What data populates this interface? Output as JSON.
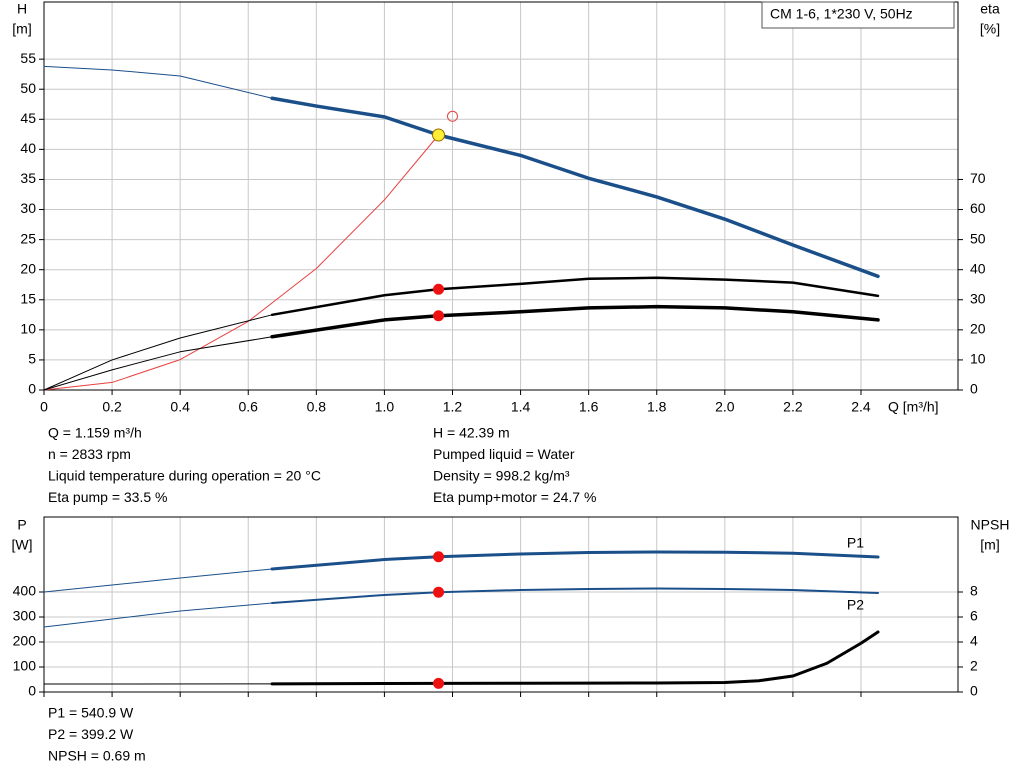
{
  "chart_data": [
    {
      "type": "line",
      "legend_text": "CM 1-6, 1*230 V, 50Hz",
      "ylabel": [
        "H",
        "[m]"
      ],
      "y2label": [
        "eta",
        "[%]"
      ],
      "xlabel": "Q [m³/h]",
      "xlim": [
        0,
        2.685
      ],
      "xticks": [
        0,
        0.2,
        0.4,
        0.6,
        0.8,
        {
          "value": 1,
          "label": "1.0"
        },
        1.2,
        1.4,
        1.6,
        1.8,
        {
          "value": 2,
          "label": "2.0"
        },
        2.2,
        2.4
      ],
      "xtick_labels": true,
      "ylim": [
        0,
        64.5
      ],
      "yticks": [
        0,
        5,
        10,
        15,
        20,
        25,
        30,
        35,
        40,
        45,
        50,
        55
      ],
      "y2lim": [
        0,
        129
      ],
      "y2ticks": [
        0,
        10,
        20,
        30,
        40,
        50,
        60,
        70
      ],
      "grid": true,
      "series": [
        {
          "color": "#1a4f8a",
          "width": 1,
          "x": [
            0,
            0.2,
            0.4,
            0.67
          ],
          "values": [
            53.8,
            53.2,
            52.2,
            48.5
          ]
        },
        {
          "color": "#1a4f8a",
          "width": 3.5,
          "x": [
            0.67,
            0.8,
            1.0,
            1.159,
            1.4,
            1.6,
            1.8,
            2.0,
            2.2,
            2.45
          ],
          "values": [
            48.5,
            47.2,
            45.4,
            42.39,
            39,
            35.2,
            32.1,
            28.4,
            24.1,
            18.9
          ]
        },
        {
          "color": "#e84040",
          "width": 1,
          "x": [
            0,
            0.2,
            0.4,
            0.6,
            0.8,
            1.0,
            1.159
          ],
          "values": [
            0,
            1.26,
            5.05,
            11.4,
            20.2,
            31.6,
            42.39
          ]
        },
        {
          "color": "#000000",
          "width": 1,
          "axis": "y2",
          "x": [
            0,
            0.2,
            0.4,
            0.67
          ],
          "values": [
            0,
            10,
            17.3,
            25
          ]
        },
        {
          "color": "#000000",
          "width": 2.5,
          "axis": "y2",
          "x": [
            0.67,
            1.0,
            1.159,
            1.4,
            1.6,
            1.8,
            2.0,
            2.2,
            2.45
          ],
          "values": [
            25,
            31.5,
            33.5,
            35.3,
            37,
            37.3,
            36.7,
            35.7,
            31.3
          ]
        },
        {
          "color": "#000000",
          "width": 1,
          "axis": "y2",
          "x": [
            0,
            0.2,
            0.4,
            0.67
          ],
          "values": [
            0,
            6.7,
            12.7,
            17.7
          ]
        },
        {
          "color": "#000000",
          "width": 3.5,
          "axis": "y2",
          "x": [
            0.67,
            1.0,
            1.159,
            1.4,
            1.6,
            1.8,
            2.0,
            2.2,
            2.45
          ],
          "values": [
            17.7,
            23.3,
            24.7,
            26,
            27.3,
            27.7,
            27.3,
            26,
            23.3
          ]
        }
      ],
      "points": [
        {
          "x": 1.2,
          "y": 45.5,
          "color": "none",
          "stroke": "#e84040",
          "r": 5
        },
        {
          "x": 1.159,
          "y": 42.39,
          "color": "#ffee33",
          "stroke": "#9a6a00",
          "r": 6
        },
        {
          "x": 1.159,
          "y": 33.5,
          "axis": "y2",
          "color": "#ee1111",
          "stroke": "#ee1111",
          "r": 5
        },
        {
          "x": 1.159,
          "y": 24.7,
          "axis": "y2",
          "color": "#ee1111",
          "stroke": "#ee1111",
          "r": 5
        }
      ],
      "annotations": [
        [
          "Q = 1.159 m³/h",
          "n = 2833 rpm",
          "Liquid temperature during operation = 20 °C",
          "Eta pump = 33.5 %"
        ],
        [
          "H = 42.39 m",
          "Pumped liquid = Water",
          "Density = 998.2 kg/m³",
          "Eta pump+motor = 24.7 %"
        ]
      ]
    },
    {
      "type": "line",
      "ylabel": [
        "P",
        "[W]"
      ],
      "y2label": [
        "NPSH",
        "[m]"
      ],
      "xlim": [
        0,
        2.685
      ],
      "xticks": [
        0,
        0.2,
        0.4,
        0.6,
        0.8,
        {
          "value": 1,
          "label": "1.0"
        },
        1.2,
        1.4,
        1.6,
        1.8,
        {
          "value": 2,
          "label": "2.0"
        },
        2.2,
        2.4
      ],
      "xtick_labels": false,
      "ylim": [
        0,
        700
      ],
      "yticks": [
        0,
        100,
        200,
        300,
        400
      ],
      "y2lim": [
        0,
        14
      ],
      "y2ticks": [
        0,
        2,
        4,
        6,
        8
      ],
      "grid": true,
      "series": [
        {
          "color": "#1a4f8a",
          "width": 1,
          "x": [
            0,
            0.2,
            0.4,
            0.67
          ],
          "values": [
            400,
            428,
            456,
            492
          ]
        },
        {
          "name": "P1",
          "label_side": "above",
          "color": "#1a4f8a",
          "width": 3,
          "x": [
            0.67,
            1.0,
            1.159,
            1.4,
            1.6,
            1.8,
            2.0,
            2.2,
            2.45
          ],
          "values": [
            492,
            530,
            540.9,
            552,
            558,
            560,
            559,
            555,
            540
          ]
        },
        {
          "color": "#1a4f8a",
          "width": 1,
          "x": [
            0,
            0.2,
            0.4,
            0.67
          ],
          "values": [
            260,
            292,
            324,
            356
          ]
        },
        {
          "name": "P2",
          "label_side": "below",
          "color": "#1a4f8a",
          "width": 2,
          "x": [
            0.67,
            1.0,
            1.159,
            1.4,
            1.6,
            1.8,
            2.0,
            2.2,
            2.45
          ],
          "values": [
            356,
            388,
            399.2,
            408,
            412,
            414,
            412,
            408,
            396
          ]
        },
        {
          "color": "#000000",
          "width": 1,
          "axis": "y2",
          "x": [
            0,
            0.67
          ],
          "values": [
            0.64,
            0.65
          ]
        },
        {
          "color": "#000000",
          "width": 3,
          "axis": "y2",
          "x": [
            0.67,
            1.0,
            1.159,
            1.4,
            1.6,
            1.8,
            2.0,
            2.1,
            2.2,
            2.3,
            2.4,
            2.45
          ],
          "values": [
            0.65,
            0.68,
            0.69,
            0.7,
            0.71,
            0.72,
            0.76,
            0.9,
            1.28,
            2.3,
            3.9,
            4.8
          ]
        }
      ],
      "points": [
        {
          "x": 1.159,
          "y": 540.9,
          "color": "#ee1111",
          "stroke": "#ee1111",
          "r": 5
        },
        {
          "x": 1.159,
          "y": 399.2,
          "color": "#ee1111",
          "stroke": "#ee1111",
          "r": 5
        },
        {
          "x": 1.159,
          "y": 0.69,
          "axis": "y2",
          "color": "#ee1111",
          "stroke": "#ee1111",
          "r": 5
        }
      ],
      "annotations": [
        [
          "P1 = 540.9 W",
          "P2 = 399.2 W",
          "NPSH = 0.69 m"
        ]
      ]
    }
  ]
}
